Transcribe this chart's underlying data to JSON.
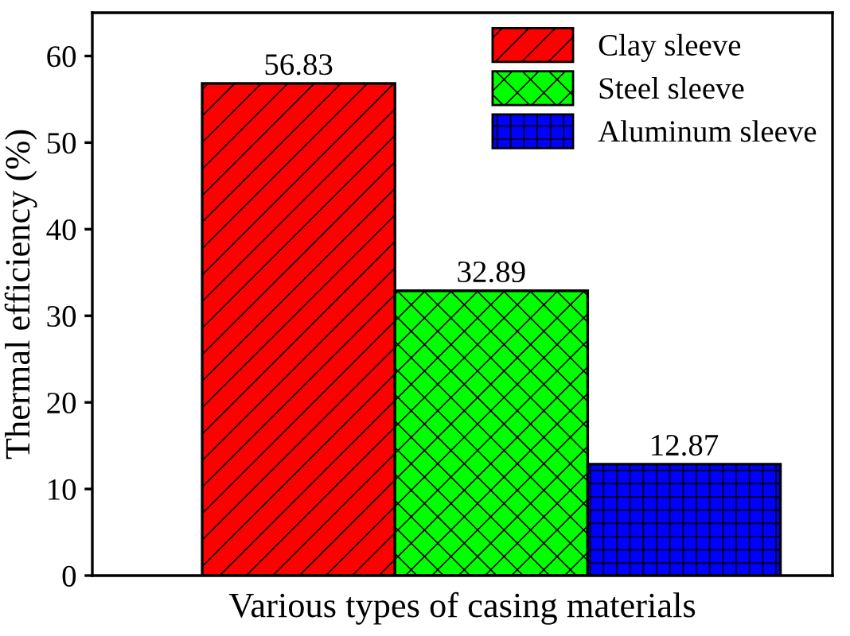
{
  "chart_data": {
    "type": "bar",
    "xlabel": "Various types of casing materials",
    "ylabel": "Thermal efficiency (%)",
    "categories": [
      null,
      null,
      null
    ],
    "series": [
      {
        "name": "Clay sleeve",
        "color": "#ff0000",
        "values": [
          56.83,
          null,
          null
        ]
      },
      {
        "name": "Steel sleeve",
        "color": "#00ff00",
        "values": [
          null,
          32.89,
          null
        ]
      },
      {
        "name": "Aluminum sleeve",
        "color": "#0000ff",
        "values": [
          null,
          null,
          12.87
        ]
      }
    ],
    "ylim": [
      0,
      65
    ],
    "yticks": [
      0,
      10,
      20,
      30,
      40,
      50,
      60
    ],
    "data_labels": true,
    "legend": "top right",
    "grid": false
  }
}
